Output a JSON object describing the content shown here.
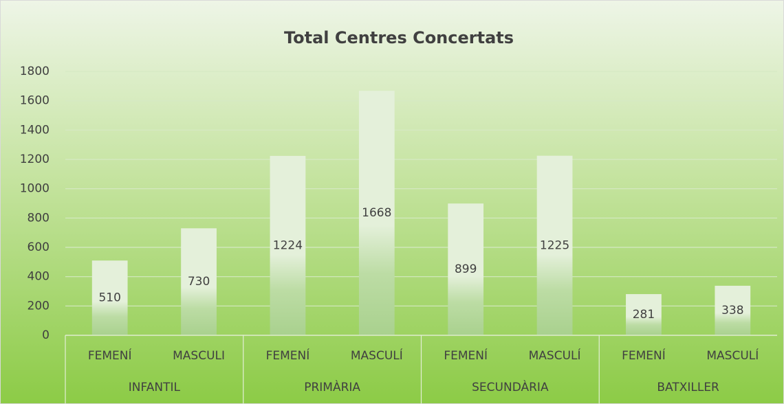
{
  "chart_data": {
    "type": "bar",
    "title": "Total Centres Concertats",
    "categories": [
      "FEMENÍ",
      "MASCULI",
      "FEMENÍ",
      "MASCULÍ",
      "FEMENÍ",
      "MASCULÍ",
      "FEMENÍ",
      "MASCULÍ"
    ],
    "groups": [
      "INFANTIL",
      "PRIMÀRIA",
      "SECUNDÀRIA",
      "BATXILLER"
    ],
    "values": [
      510,
      730,
      1224,
      1668,
      899,
      1225,
      281,
      338
    ],
    "color": "#a9d18e",
    "ylim": [
      0,
      1800
    ],
    "yticks": [
      0,
      200,
      400,
      600,
      800,
      1000,
      1200,
      1400,
      1600,
      1800
    ],
    "grid": true
  }
}
